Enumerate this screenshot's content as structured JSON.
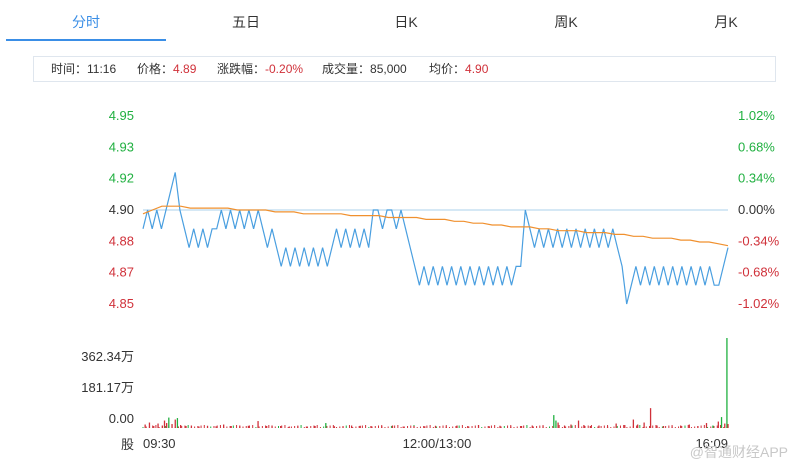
{
  "tabs": [
    "分时",
    "五日",
    "日K",
    "周K",
    "月K"
  ],
  "active_tab": 0,
  "info": {
    "time_label": "时间：",
    "time_value": "11:16",
    "price_label": "价格：",
    "price_value": "4.89",
    "change_label": "涨跌幅：",
    "change_value": "-0.20%",
    "volume_label": "成交量：",
    "volume_value": "85,000",
    "avg_label": "均价：",
    "avg_value": "4.90"
  },
  "watermark": "@智通财经APP",
  "colors": {
    "price_line": "#4a9fe0",
    "avg_line": "#f0902e",
    "up": "#20b040",
    "down": "#d0313a",
    "baseline": "#bcd9ef",
    "accent": "#3a8ee6"
  },
  "chart_data": [
    {
      "type": "line",
      "title": "",
      "y_ticks_left": [
        "4.95",
        "4.93",
        "4.92",
        "4.90",
        "4.88",
        "4.87",
        "4.85"
      ],
      "y_ticks_right": [
        "1.02%",
        "0.68%",
        "0.34%",
        "0.00%",
        "-0.34%",
        "-0.68%",
        "-1.02%"
      ],
      "ylim": [
        4.85,
        4.95
      ],
      "prev_close": 4.9,
      "x_ticks": [
        "09:30",
        "12:00/13:00",
        "16:09"
      ],
      "series": [
        {
          "key": "price",
          "values": [
            4.89,
            4.9,
            4.89,
            4.9,
            4.89,
            4.9,
            4.91,
            4.92,
            4.9,
            4.89,
            4.88,
            4.89,
            4.88,
            4.89,
            4.88,
            4.89,
            4.89,
            4.9,
            4.89,
            4.9,
            4.89,
            4.9,
            4.89,
            4.9,
            4.89,
            4.9,
            4.89,
            4.88,
            4.89,
            4.88,
            4.87,
            4.88,
            4.87,
            4.88,
            4.87,
            4.88,
            4.87,
            4.88,
            4.87,
            4.88,
            4.87,
            4.88,
            4.89,
            4.88,
            4.89,
            4.88,
            4.89,
            4.88,
            4.89,
            4.88,
            4.9,
            4.9,
            4.89,
            4.9,
            4.9,
            4.89,
            4.9,
            4.89,
            4.88,
            4.87,
            4.86,
            4.87,
            4.86,
            4.87,
            4.86,
            4.87,
            4.86,
            4.87,
            4.86,
            4.87,
            4.86,
            4.87,
            4.86,
            4.87,
            4.86,
            4.87,
            4.86,
            4.87,
            4.86,
            4.87,
            4.86,
            4.87,
            4.87,
            4.9,
            4.89,
            4.88,
            4.89,
            4.88,
            4.89,
            4.88,
            4.89,
            4.88,
            4.89,
            4.88,
            4.89,
            4.88,
            4.89,
            4.88,
            4.89,
            4.88,
            4.89,
            4.88,
            4.89,
            4.88,
            4.87,
            4.85,
            4.86,
            4.87,
            4.86,
            4.87,
            4.86,
            4.87,
            4.86,
            4.87,
            4.86,
            4.87,
            4.86,
            4.87,
            4.86,
            4.87,
            4.86,
            4.87,
            4.86,
            4.87,
            4.86,
            4.86,
            4.87,
            4.88
          ]
        },
        {
          "key": "average",
          "values": [
            4.898,
            4.9,
            4.902,
            4.902,
            4.902,
            4.901,
            4.901,
            4.901,
            4.901,
            4.901,
            4.9,
            4.9,
            4.9,
            4.9,
            4.899,
            4.899,
            4.899,
            4.898,
            4.898,
            4.898,
            4.898,
            4.898,
            4.897,
            4.897,
            4.897,
            4.897,
            4.896,
            4.896,
            4.896,
            4.896,
            4.895,
            4.895,
            4.895,
            4.894,
            4.894,
            4.893,
            4.893,
            4.892,
            4.892,
            4.891,
            4.891,
            4.891,
            4.89,
            4.89,
            4.889,
            4.889,
            4.889,
            4.888,
            4.888,
            4.888,
            4.887,
            4.887,
            4.886,
            4.886,
            4.885,
            4.885,
            4.885,
            4.884,
            4.884,
            4.883,
            4.883,
            4.882,
            4.881
          ]
        }
      ]
    },
    {
      "type": "bar",
      "title": "",
      "y_ticks": [
        "362.34万",
        "181.17万",
        "0.00"
      ],
      "ylim": [
        0,
        362.34
      ],
      "y_unit": "万",
      "x_unit_label": "股",
      "values_up": [
        0,
        0,
        0,
        0,
        0,
        0,
        0,
        0,
        0,
        48,
        0,
        0,
        0,
        0,
        0,
        0,
        32,
        0,
        0,
        0,
        0,
        0,
        0,
        0,
        0,
        0,
        0,
        0,
        0,
        0,
        0,
        0,
        0,
        0,
        0,
        0,
        0,
        0,
        0,
        0,
        0,
        0,
        0,
        0,
        0,
        0,
        0,
        0,
        0,
        0,
        0,
        0,
        0,
        0,
        0,
        0,
        0,
        0,
        0,
        0,
        0,
        0,
        0,
        0,
        12,
        0,
        0,
        0,
        0,
        0,
        0,
        0,
        0,
        0,
        0,
        0,
        0,
        0,
        0,
        0,
        0,
        0,
        0,
        0,
        0,
        0,
        0,
        0,
        0,
        0,
        0,
        0,
        0,
        0,
        0,
        0,
        0,
        0,
        0,
        0,
        0,
        0,
        0,
        0,
        0,
        0,
        0,
        0,
        0,
        0,
        0,
        0,
        0,
        0,
        0,
        0,
        0,
        0,
        0,
        0,
        0,
        0,
        0,
        0,
        0,
        0,
        0,
        0,
        0,
        0,
        0,
        0,
        0,
        0,
        0,
        0,
        0,
        0,
        0,
        0,
        0,
        0,
        0,
        0,
        0,
        0,
        0,
        0,
        0,
        0,
        0,
        0,
        0,
        0,
        0,
        0,
        0,
        0,
        0,
        0,
        0,
        0,
        0,
        0,
        0,
        0,
        0,
        0,
        0,
        0,
        0,
        0,
        0,
        0,
        0,
        0,
        0,
        0,
        0,
        0,
        0,
        0,
        0,
        0,
        0,
        0,
        0,
        0,
        0,
        0,
        0,
        0,
        0,
        0,
        0,
        0,
        0,
        0,
        0,
        0,
        0,
        0,
        0,
        0,
        0,
        0,
        0,
        0,
        0,
        0,
        0,
        0,
        0,
        0,
        0,
        0,
        0,
        0,
        0,
        0,
        0,
        0,
        0,
        0,
        0,
        0,
        0,
        0,
        0,
        0,
        0,
        0,
        0,
        0,
        0,
        0,
        0,
        0,
        0,
        0,
        0,
        0,
        0,
        0,
        0,
        0,
        0,
        0,
        0,
        0,
        0,
        0,
        0,
        0,
        0,
        0,
        0,
        0,
        0,
        0,
        0,
        0,
        0,
        0,
        0,
        0,
        0,
        0,
        0,
        0,
        0,
        0,
        0,
        0,
        0,
        0,
        0,
        0,
        0,
        0,
        0,
        0,
        0,
        0,
        0,
        0,
        0,
        0,
        0,
        0,
        0,
        0,
        0,
        0,
        0,
        0,
        0,
        0,
        0,
        0,
        0,
        0,
        0,
        0,
        0,
        0,
        0,
        0,
        0,
        0,
        0,
        0,
        0,
        0,
        0,
        0,
        0,
        0,
        0,
        0,
        0,
        0,
        0,
        0,
        0,
        0,
        0,
        0,
        0,
        0,
        0,
        0,
        0,
        0,
        0,
        0,
        0,
        0,
        0,
        0,
        0,
        0,
        0,
        0,
        0,
        0,
        0,
        0,
        0,
        0,
        0,
        0,
        0,
        0,
        0,
        0,
        0,
        0,
        0,
        0,
        0,
        0,
        0,
        0,
        0,
        0,
        0,
        0,
        0,
        0,
        0,
        0,
        0,
        0,
        0,
        0,
        0,
        0,
        0,
        0,
        0,
        0,
        0,
        0,
        0,
        0,
        0,
        0,
        0,
        0,
        0,
        0,
        0,
        0,
        0,
        0,
        0,
        0,
        0,
        0,
        0,
        0,
        0,
        0,
        0,
        0,
        0,
        0,
        0,
        0,
        0,
        0,
        0,
        0,
        0,
        0,
        0,
        0,
        0,
        0,
        0,
        0,
        0,
        0,
        0,
        0,
        0,
        0,
        0,
        0,
        0,
        0,
        0,
        0,
        0,
        0,
        0,
        0,
        0,
        0,
        0,
        0,
        0,
        0,
        0,
        0,
        0,
        0,
        0,
        0,
        0,
        0,
        0,
        0,
        0,
        0,
        0,
        0,
        0,
        0,
        0,
        0,
        0,
        0,
        0,
        0,
        0,
        0,
        0,
        0,
        0,
        0,
        0,
        0,
        0,
        0,
        0,
        0,
        0,
        0,
        0,
        0,
        0,
        0,
        0,
        0,
        0,
        0,
        0,
        0,
        0,
        0,
        0,
        0,
        0,
        0,
        0,
        0,
        0,
        0,
        0,
        0,
        0,
        0,
        0,
        0,
        0,
        0,
        0,
        0,
        0,
        0,
        0,
        0,
        0,
        0,
        0,
        0,
        0,
        0,
        0,
        0,
        0,
        0,
        0,
        0,
        0,
        0,
        0,
        0,
        0,
        0,
        0,
        0,
        0,
        0,
        0,
        0,
        0,
        0,
        0,
        0,
        0,
        0,
        0,
        0,
        0,
        0,
        0,
        0,
        0,
        0,
        0,
        0,
        0,
        0,
        0,
        0,
        0,
        0,
        0,
        0,
        0,
        0,
        0,
        0,
        0,
        0,
        0,
        0,
        0,
        0,
        0,
        0,
        0,
        0,
        0,
        0,
        0,
        0,
        0,
        0,
        0,
        0,
        0,
        0,
        0,
        0,
        0,
        0,
        0,
        0,
        0,
        0,
        0,
        0,
        0,
        0,
        0,
        0,
        0,
        0,
        0,
        0,
        0,
        0,
        0,
        0,
        0,
        0,
        0,
        0,
        0,
        0,
        0,
        0,
        0,
        0,
        0,
        0,
        0,
        0,
        0,
        0,
        0,
        0,
        0,
        0,
        0,
        0,
        0,
        0,
        0,
        0,
        0,
        0,
        0,
        0,
        0,
        0,
        0,
        0,
        0,
        0,
        0,
        0,
        0,
        0,
        0,
        0,
        0,
        0,
        0,
        0,
        0,
        0,
        0,
        0,
        0,
        0,
        0,
        0,
        0,
        0,
        0,
        0,
        0,
        0
      ],
      "spikes": [
        {
          "i": 2,
          "v": 14,
          "d": "down"
        },
        {
          "i": 6,
          "v": 22,
          "d": "down"
        },
        {
          "i": 10,
          "v": 8,
          "d": "down"
        },
        {
          "i": 14,
          "v": 18,
          "d": "down"
        },
        {
          "i": 18,
          "v": 10,
          "d": "down"
        },
        {
          "i": 20,
          "v": 30,
          "d": "down"
        },
        {
          "i": 22,
          "v": 20,
          "d": "down"
        },
        {
          "i": 24,
          "v": 42,
          "d": "up"
        },
        {
          "i": 27,
          "v": 16,
          "d": "down"
        },
        {
          "i": 30,
          "v": 34,
          "d": "down"
        },
        {
          "i": 32,
          "v": 40,
          "d": "up"
        },
        {
          "i": 35,
          "v": 12,
          "d": "down"
        },
        {
          "i": 40,
          "v": 8,
          "d": "down"
        },
        {
          "i": 45,
          "v": 10,
          "d": "down"
        },
        {
          "i": 52,
          "v": 6,
          "d": "down"
        },
        {
          "i": 60,
          "v": 9,
          "d": "down"
        },
        {
          "i": 68,
          "v": 7,
          "d": "down"
        },
        {
          "i": 75,
          "v": 14,
          "d": "down"
        },
        {
          "i": 82,
          "v": 8,
          "d": "down"
        },
        {
          "i": 90,
          "v": 10,
          "d": "down"
        },
        {
          "i": 98,
          "v": 9,
          "d": "down"
        },
        {
          "i": 107,
          "v": 28,
          "d": "down"
        },
        {
          "i": 115,
          "v": 8,
          "d": "down"
        },
        {
          "i": 120,
          "v": 10,
          "d": "down"
        },
        {
          "i": 128,
          "v": 8,
          "d": "down"
        },
        {
          "i": 136,
          "v": 6,
          "d": "down"
        },
        {
          "i": 144,
          "v": 7,
          "d": "down"
        },
        {
          "i": 152,
          "v": 6,
          "d": "down"
        },
        {
          "i": 160,
          "v": 8,
          "d": "down"
        },
        {
          "i": 170,
          "v": 20,
          "d": "up"
        },
        {
          "i": 178,
          "v": 7,
          "d": "down"
        },
        {
          "i": 186,
          "v": 6,
          "d": "down"
        },
        {
          "i": 194,
          "v": 10,
          "d": "down"
        },
        {
          "i": 202,
          "v": 9,
          "d": "down"
        },
        {
          "i": 212,
          "v": 8,
          "d": "down"
        },
        {
          "i": 222,
          "v": 7,
          "d": "down"
        },
        {
          "i": 232,
          "v": 10,
          "d": "down"
        },
        {
          "i": 242,
          "v": 6,
          "d": "down"
        },
        {
          "i": 252,
          "v": 8,
          "d": "down"
        },
        {
          "i": 262,
          "v": 7,
          "d": "down"
        },
        {
          "i": 272,
          "v": 9,
          "d": "down"
        },
        {
          "i": 282,
          "v": 6,
          "d": "down"
        },
        {
          "i": 292,
          "v": 10,
          "d": "down"
        },
        {
          "i": 302,
          "v": 8,
          "d": "down"
        },
        {
          "i": 312,
          "v": 12,
          "d": "down"
        },
        {
          "i": 322,
          "v": 7,
          "d": "down"
        },
        {
          "i": 332,
          "v": 9,
          "d": "down"
        },
        {
          "i": 342,
          "v": 6,
          "d": "down"
        },
        {
          "i": 352,
          "v": 8,
          "d": "down"
        },
        {
          "i": 362,
          "v": 10,
          "d": "down"
        },
        {
          "i": 372,
          "v": 7,
          "d": "down"
        },
        {
          "i": 382,
          "v": 52,
          "d": "up"
        },
        {
          "i": 384,
          "v": 30,
          "d": "up"
        },
        {
          "i": 386,
          "v": 22,
          "d": "down"
        },
        {
          "i": 392,
          "v": 10,
          "d": "down"
        },
        {
          "i": 398,
          "v": 14,
          "d": "down"
        },
        {
          "i": 405,
          "v": 30,
          "d": "down"
        },
        {
          "i": 410,
          "v": 12,
          "d": "down"
        },
        {
          "i": 416,
          "v": 8,
          "d": "down"
        },
        {
          "i": 424,
          "v": 10,
          "d": "down"
        },
        {
          "i": 432,
          "v": 6,
          "d": "down"
        },
        {
          "i": 440,
          "v": 18,
          "d": "down"
        },
        {
          "i": 448,
          "v": 12,
          "d": "down"
        },
        {
          "i": 456,
          "v": 34,
          "d": "down"
        },
        {
          "i": 460,
          "v": 14,
          "d": "down"
        },
        {
          "i": 466,
          "v": 22,
          "d": "down"
        },
        {
          "i": 472,
          "v": 80,
          "d": "down"
        },
        {
          "i": 478,
          "v": 10,
          "d": "down"
        },
        {
          "i": 484,
          "v": 8,
          "d": "down"
        },
        {
          "i": 492,
          "v": 6,
          "d": "down"
        },
        {
          "i": 500,
          "v": 10,
          "d": "down"
        },
        {
          "i": 508,
          "v": 14,
          "d": "down"
        },
        {
          "i": 516,
          "v": 8,
          "d": "down"
        },
        {
          "i": 524,
          "v": 20,
          "d": "down"
        },
        {
          "i": 530,
          "v": 10,
          "d": "up"
        },
        {
          "i": 535,
          "v": 26,
          "d": "down"
        },
        {
          "i": 538,
          "v": 44,
          "d": "up"
        },
        {
          "i": 541,
          "v": 18,
          "d": "down"
        },
        {
          "i": 543,
          "v": 362.34,
          "d": "up"
        },
        {
          "i": 544,
          "v": 16,
          "d": "down"
        }
      ]
    }
  ]
}
